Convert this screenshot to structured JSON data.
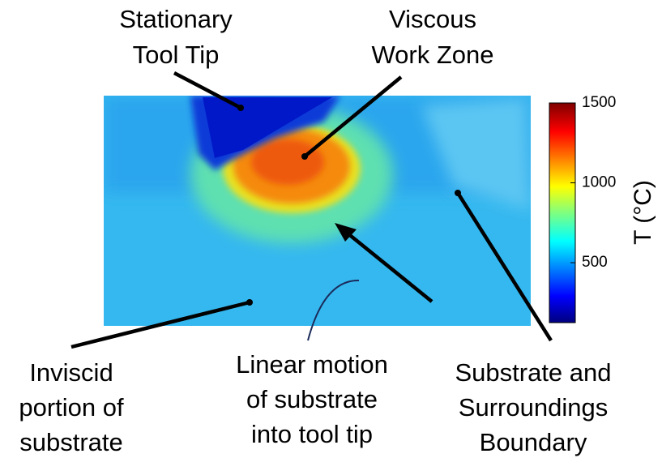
{
  "annotations": [
    {
      "lines": [
        "Stationary",
        "Tool Tip"
      ]
    },
    {
      "lines": [
        "Viscous",
        "Work Zone"
      ]
    },
    {
      "lines": [
        "Inviscid",
        "portion of",
        "substrate"
      ]
    },
    {
      "lines": [
        "Linear motion",
        "of substrate",
        "into tool tip"
      ]
    },
    {
      "lines": [
        "Substrate and",
        "Surroundings",
        "Boundary"
      ]
    }
  ],
  "colorbar": {
    "label": "T (°C)",
    "range": [
      125,
      1500
    ],
    "ticks": [
      500,
      1000,
      1500
    ]
  }
}
